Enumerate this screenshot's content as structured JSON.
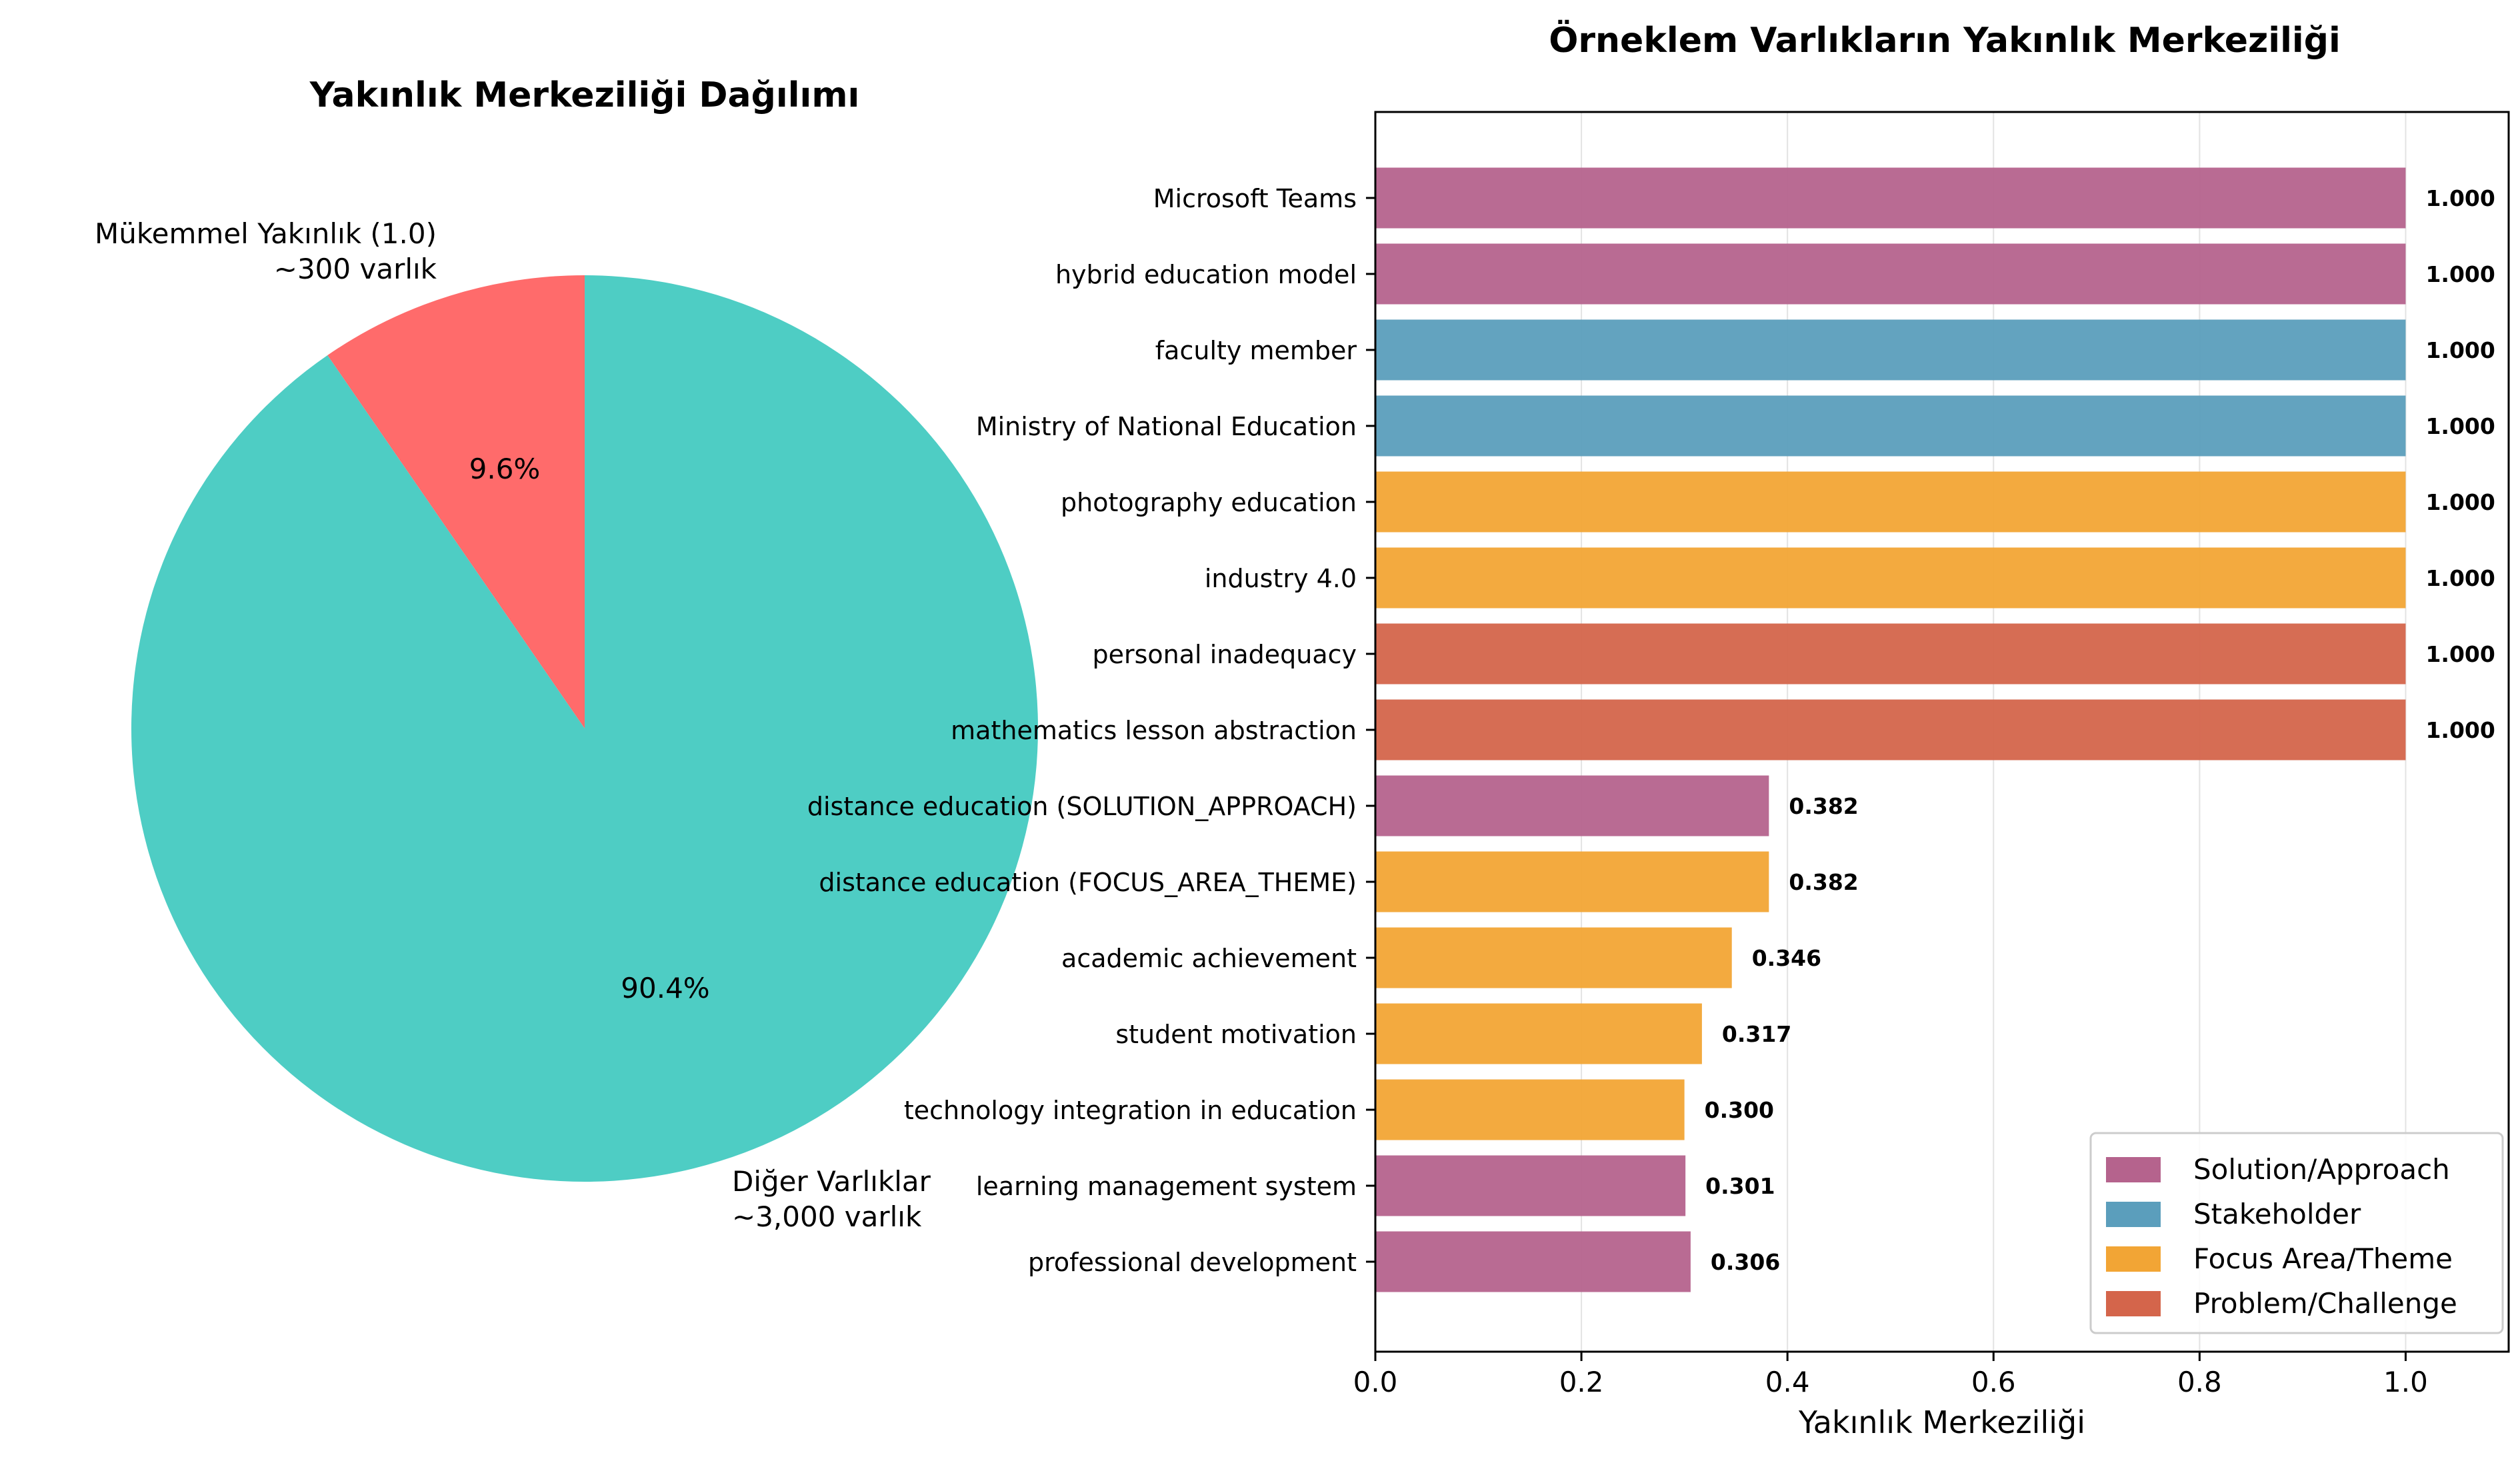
{
  "chart_data": [
    {
      "type": "pie",
      "title": "Yakınlık Merkeziliği Dağılımı",
      "slices": [
        {
          "label": "Mükemmel Yakınlık (1.0)",
          "sublabel": "~300 varlık",
          "value": 9.6,
          "pct_label": "9.6%",
          "color": "#ff6b6b"
        },
        {
          "label": "Diğer Varlıklar",
          "sublabel": "~3,000 varlık",
          "value": 90.4,
          "pct_label": "90.4%",
          "color": "#4ecdc4"
        }
      ]
    },
    {
      "type": "bar",
      "orientation": "horizontal",
      "title": "Örneklem Varlıkların Yakınlık Merkeziliği",
      "xlabel": "Yakınlık Merkeziliği",
      "xlim": [
        0,
        1.1
      ],
      "xticks": [
        "0.0",
        "0.2",
        "0.4",
        "0.6",
        "0.8",
        "1.0"
      ],
      "grid": "vertical",
      "legend_position": "lower-right",
      "categories": [
        "Microsoft Teams",
        "hybrid education model",
        "faculty member",
        "Ministry of National Education",
        "photography education",
        "industry 4.0",
        "personal inadequacy",
        "mathematics lesson abstraction",
        "distance education (SOLUTION_APPROACH)",
        "distance education (FOCUS_AREA_THEME)",
        "academic achievement",
        "student motivation",
        "technology integration in education",
        "learning management system",
        "professional development"
      ],
      "values": [
        1.0,
        1.0,
        1.0,
        1.0,
        1.0,
        1.0,
        1.0,
        1.0,
        0.382,
        0.382,
        0.346,
        0.317,
        0.3,
        0.301,
        0.306
      ],
      "value_labels": [
        "1.000",
        "1.000",
        "1.000",
        "1.000",
        "1.000",
        "1.000",
        "1.000",
        "1.000",
        "0.382",
        "0.382",
        "0.346",
        "0.317",
        "0.300",
        "0.301",
        "0.306"
      ],
      "bar_types": [
        "solution",
        "solution",
        "stakeholder",
        "stakeholder",
        "focus",
        "focus",
        "problem",
        "problem",
        "solution",
        "focus",
        "focus",
        "focus",
        "focus",
        "solution",
        "solution"
      ],
      "legend": [
        {
          "key": "solution",
          "name": "Solution/Approach",
          "color": "#b5638d"
        },
        {
          "key": "stakeholder",
          "name": "Stakeholder",
          "color": "#5b9ebc"
        },
        {
          "key": "focus",
          "name": "Focus Area/Theme",
          "color": "#f2a535"
        },
        {
          "key": "problem",
          "name": "Problem/Challenge",
          "color": "#d4654b"
        }
      ]
    }
  ]
}
